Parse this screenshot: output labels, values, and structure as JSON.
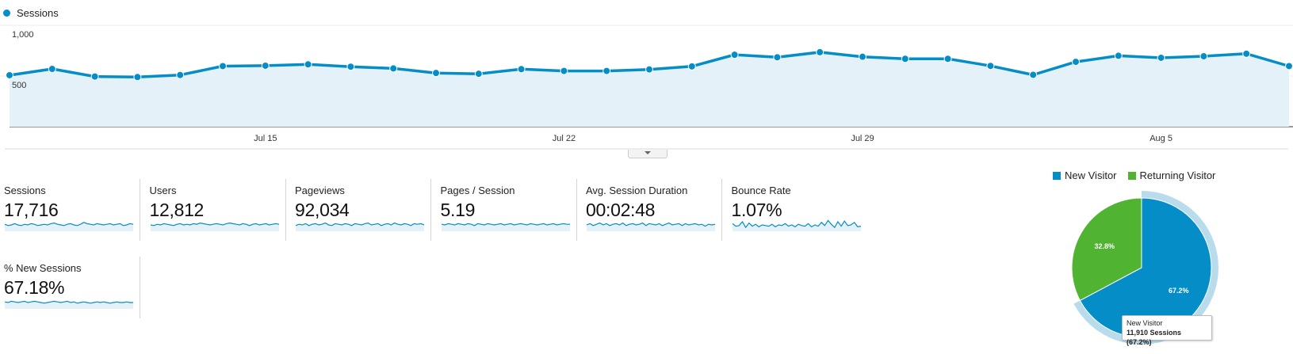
{
  "legend": {
    "series_name": "Sessions",
    "color": "#058dc7"
  },
  "chart_data": [
    {
      "type": "area",
      "title": "",
      "series": [
        {
          "name": "Sessions",
          "color": "#058dc7",
          "values": [
            508,
            570,
            495,
            490,
            510,
            598,
            602,
            615,
            592,
            575,
            530,
            522,
            568,
            550,
            550,
            565,
            595,
            710,
            685,
            735,
            690,
            670,
            670,
            600,
            512,
            640,
            700,
            680,
            695,
            720,
            598
          ]
        }
      ],
      "x_labels": [
        {
          "index": 6,
          "label": "Jul 15"
        },
        {
          "index": 13,
          "label": "Jul 22"
        },
        {
          "index": 20,
          "label": "Jul 29"
        },
        {
          "index": 27,
          "label": "Aug 5"
        }
      ],
      "y_ticks": [
        {
          "value": 1000,
          "label": "1,000"
        },
        {
          "value": 500,
          "label": "500"
        }
      ],
      "ylim": [
        0,
        1000
      ],
      "grid": true
    },
    {
      "type": "pie",
      "legend_position": "top",
      "slices": [
        {
          "name": "New Visitor",
          "value": 67.2,
          "label": "67.2%",
          "color": "#058dc7"
        },
        {
          "name": "Returning Visitor",
          "value": 32.8,
          "label": "32.8%",
          "color": "#50b432"
        }
      ],
      "tooltip": {
        "title": "New Visitor",
        "text": "11,910 Sessions (67.2%)"
      }
    }
  ],
  "metrics": [
    {
      "label": "Sessions",
      "value": "17,716",
      "spark": [
        0.55,
        0.45,
        0.5,
        0.6,
        0.5,
        0.45,
        0.55,
        0.5,
        0.6,
        0.55,
        0.45,
        0.5,
        0.55,
        0.5,
        0.6,
        0.65,
        0.55,
        0.5,
        0.45,
        0.55,
        0.6,
        0.5,
        0.45,
        0.55,
        0.7,
        0.6,
        0.55,
        0.5,
        0.6,
        0.55,
        0.5,
        0.55,
        0.6,
        0.5,
        0.55,
        0.6,
        0.45,
        0.5,
        0.6,
        0.55
      ]
    },
    {
      "label": "Users",
      "value": "12,812",
      "spark": [
        0.5,
        0.45,
        0.55,
        0.5,
        0.6,
        0.55,
        0.5,
        0.45,
        0.55,
        0.6,
        0.5,
        0.55,
        0.5,
        0.6,
        0.55,
        0.65,
        0.6,
        0.55,
        0.5,
        0.55,
        0.6,
        0.55,
        0.5,
        0.6,
        0.65,
        0.6,
        0.55,
        0.5,
        0.6,
        0.55,
        0.45,
        0.55,
        0.6,
        0.5,
        0.55,
        0.6,
        0.5,
        0.55,
        0.6,
        0.55
      ]
    },
    {
      "label": "Pageviews",
      "value": "92,034",
      "spark": [
        0.45,
        0.55,
        0.5,
        0.6,
        0.45,
        0.55,
        0.6,
        0.5,
        0.55,
        0.65,
        0.5,
        0.45,
        0.6,
        0.55,
        0.5,
        0.6,
        0.55,
        0.45,
        0.6,
        0.55,
        0.5,
        0.6,
        0.65,
        0.5,
        0.55,
        0.6,
        0.45,
        0.55,
        0.6,
        0.5,
        0.65,
        0.55,
        0.5,
        0.6,
        0.55,
        0.45,
        0.6,
        0.55,
        0.6,
        0.5
      ]
    },
    {
      "label": "Pages / Session",
      "value": "5.19",
      "spark": [
        0.55,
        0.5,
        0.6,
        0.55,
        0.5,
        0.6,
        0.55,
        0.5,
        0.6,
        0.55,
        0.45,
        0.6,
        0.55,
        0.5,
        0.6,
        0.55,
        0.5,
        0.55,
        0.6,
        0.5,
        0.55,
        0.6,
        0.5,
        0.55,
        0.6,
        0.55,
        0.5,
        0.6,
        0.55,
        0.5,
        0.55,
        0.6,
        0.5,
        0.55,
        0.6,
        0.5,
        0.55,
        0.6,
        0.55,
        0.55
      ]
    },
    {
      "label": "Avg. Session Duration",
      "value": "00:02:48",
      "spark": [
        0.5,
        0.6,
        0.45,
        0.55,
        0.65,
        0.5,
        0.6,
        0.45,
        0.55,
        0.6,
        0.5,
        0.65,
        0.45,
        0.55,
        0.6,
        0.5,
        0.55,
        0.65,
        0.45,
        0.6,
        0.55,
        0.5,
        0.6,
        0.45,
        0.55,
        0.65,
        0.5,
        0.55,
        0.6,
        0.45,
        0.6,
        0.5,
        0.55,
        0.6,
        0.5,
        0.55,
        0.4,
        0.55,
        0.5,
        0.55
      ]
    },
    {
      "label": "Bounce Rate",
      "value": "1.07%",
      "spark": [
        0.6,
        0.4,
        0.45,
        0.75,
        0.3,
        0.65,
        0.4,
        0.55,
        0.35,
        0.5,
        0.45,
        0.4,
        0.55,
        0.35,
        0.5,
        0.45,
        0.6,
        0.4,
        0.5,
        0.35,
        0.55,
        0.45,
        0.4,
        0.6,
        0.35,
        0.5,
        0.4,
        0.7,
        0.45,
        0.85,
        0.55,
        0.3,
        0.75,
        0.4,
        0.8,
        0.45,
        0.5,
        0.7,
        0.35,
        0.4
      ]
    },
    {
      "label": "% New Sessions",
      "value": "67.18%",
      "spark": [
        0.55,
        0.5,
        0.6,
        0.55,
        0.5,
        0.55,
        0.6,
        0.5,
        0.55,
        0.6,
        0.55,
        0.5,
        0.45,
        0.5,
        0.55,
        0.6,
        0.55,
        0.5,
        0.55,
        0.6,
        0.5,
        0.55,
        0.45,
        0.5,
        0.55,
        0.5,
        0.45,
        0.5,
        0.55,
        0.5,
        0.55,
        0.5,
        0.45,
        0.5,
        0.55,
        0.5,
        0.5,
        0.55,
        0.5,
        0.5
      ]
    }
  ]
}
